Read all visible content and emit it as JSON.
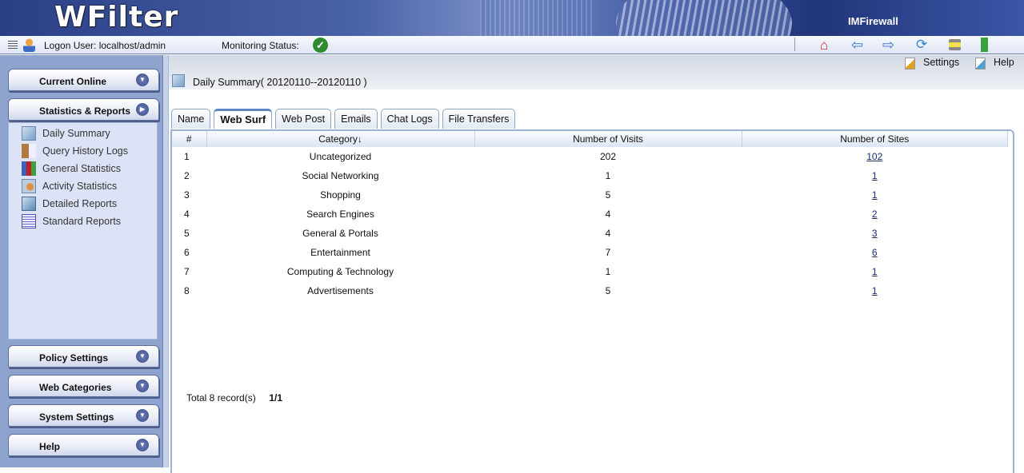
{
  "header": {
    "logo": "WFilter",
    "brand": "IMFirewall"
  },
  "toolbar": {
    "logon_user": "Logon User: localhost/admin",
    "monitoring_status": "Monitoring Status:",
    "icons": [
      "home-icon",
      "back-icon",
      "forward-icon",
      "refresh-icon",
      "print-icon",
      "logout-icon"
    ]
  },
  "sidebar": {
    "current_online": "Current Online",
    "statistics": "Statistics & Reports",
    "items": [
      {
        "label": "Daily Summary",
        "icon": "notepad-icon"
      },
      {
        "label": "Query History Logs",
        "icon": "clipboard-icon"
      },
      {
        "label": "General Statistics",
        "icon": "bar-chart-icon"
      },
      {
        "label": "Activity Statistics",
        "icon": "user-book-icon"
      },
      {
        "label": "Detailed Reports",
        "icon": "report-save-icon"
      },
      {
        "label": "Standard Reports",
        "icon": "document-lines-icon"
      }
    ],
    "policy": "Policy Settings",
    "web_categories": "Web Categories",
    "system": "System Settings",
    "help": "Help"
  },
  "main": {
    "settings": "Settings",
    "help": "Help",
    "title": "Daily Summary( 20120110--20120110 )",
    "tabs": [
      "Name",
      "Web Surf",
      "Web Post",
      "Emails",
      "Chat Logs",
      "File Transfers"
    ],
    "active_tab": "Web Surf",
    "columns": [
      "#",
      "Category↓",
      "Number of Visits",
      "Number of Sites"
    ],
    "rows": [
      [
        "1",
        "Uncategorized",
        "202",
        "102"
      ],
      [
        "2",
        "Social Networking",
        "1",
        "1"
      ],
      [
        "3",
        "Shopping",
        "5",
        "1"
      ],
      [
        "4",
        "Search Engines",
        "4",
        "2"
      ],
      [
        "5",
        "General & Portals",
        "4",
        "3"
      ],
      [
        "6",
        "Entertainment",
        "7",
        "6"
      ],
      [
        "7",
        "Computing & Technology",
        "1",
        "1"
      ],
      [
        "8",
        "Advertisements",
        "5",
        "1"
      ]
    ],
    "total": "Total 8 record(s)",
    "page": "1/1"
  },
  "colors": {
    "sidebar": "#8fa3cf",
    "banner": "#2a3f86",
    "status_ok": "#2e8b2e"
  }
}
